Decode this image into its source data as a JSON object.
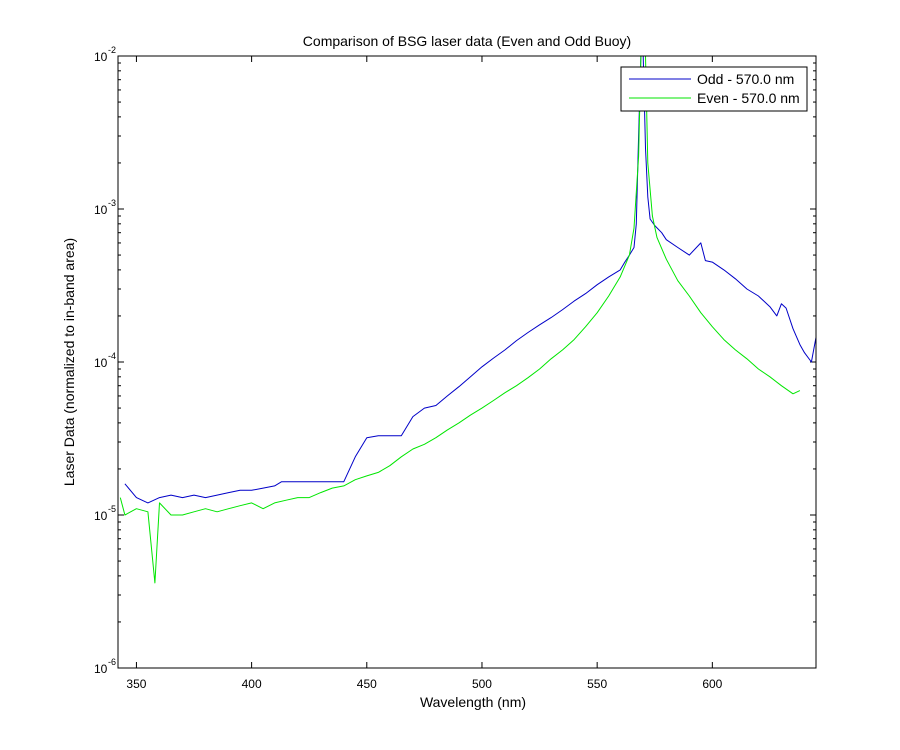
{
  "chart_data": {
    "type": "line",
    "title": "Comparison of BSG laser data (Even and Odd Buoy)",
    "xlabel": "Wavelength (nm)",
    "ylabel": "Laser Data (normalized to in-band area)",
    "xlim": [
      342,
      645
    ],
    "ylim": [
      1e-06,
      0.01
    ],
    "yscale": "log",
    "xticks": [
      350,
      400,
      450,
      500,
      550,
      600
    ],
    "yticks": [
      {
        "value": 1e-06,
        "base": "10",
        "exp": "-6"
      },
      {
        "value": 1e-05,
        "base": "10",
        "exp": "-5"
      },
      {
        "value": 0.0001,
        "base": "10",
        "exp": "-4"
      },
      {
        "value": 0.001,
        "base": "10",
        "exp": "-3"
      },
      {
        "value": 0.01,
        "base": "10",
        "exp": "-2"
      }
    ],
    "grid": false,
    "legend_position": "top-right",
    "series": [
      {
        "name": "Odd - 570.0 nm",
        "color": "#0000c8",
        "x": [
          345,
          350,
          355,
          360,
          365,
          370,
          375,
          380,
          385,
          390,
          395,
          400,
          405,
          410,
          413,
          420,
          430,
          440,
          445,
          450,
          455,
          460,
          465,
          470,
          475,
          480,
          485,
          490,
          495,
          500,
          505,
          510,
          515,
          520,
          525,
          530,
          535,
          540,
          545,
          550,
          555,
          560,
          562,
          564,
          566,
          567,
          568,
          569,
          570,
          571,
          572,
          573,
          575,
          578,
          580,
          585,
          590,
          595,
          597,
          600,
          605,
          610,
          615,
          620,
          625,
          628,
          630,
          632,
          635,
          638,
          640,
          643,
          645
        ],
        "y": [
          1.6e-05,
          1.3e-05,
          1.2e-05,
          1.3e-05,
          1.35e-05,
          1.3e-05,
          1.35e-05,
          1.3e-05,
          1.35e-05,
          1.4e-05,
          1.45e-05,
          1.45e-05,
          1.5e-05,
          1.55e-05,
          1.65e-05,
          1.65e-05,
          1.65e-05,
          1.65e-05,
          2.4e-05,
          3.2e-05,
          3.3e-05,
          3.3e-05,
          3.3e-05,
          4.4e-05,
          5e-05,
          5.2e-05,
          6e-05,
          6.9e-05,
          8e-05,
          9.3e-05,
          0.000106,
          0.00012,
          0.000138,
          0.000156,
          0.000175,
          0.000195,
          0.00022,
          0.00025,
          0.00028,
          0.00032,
          0.00036,
          0.0004,
          0.00045,
          0.0005,
          0.00056,
          0.0008,
          0.003,
          0.01,
          0.01,
          0.0025,
          0.0012,
          0.00086,
          0.00078,
          0.0007,
          0.00063,
          0.00056,
          0.0005,
          0.0006,
          0.00046,
          0.00045,
          0.0004,
          0.00035,
          0.0003,
          0.00027,
          0.00023,
          0.0002,
          0.00024,
          0.000225,
          0.000165,
          0.00013,
          0.000115,
          0.0001,
          0.000145
        ]
      },
      {
        "name": "Even - 570.0 nm",
        "color": "#00e600",
        "x": [
          343,
          345,
          350,
          355,
          358,
          360,
          365,
          370,
          375,
          380,
          385,
          390,
          395,
          400,
          405,
          410,
          415,
          420,
          425,
          430,
          435,
          440,
          445,
          450,
          455,
          460,
          465,
          470,
          475,
          480,
          485,
          490,
          495,
          500,
          505,
          510,
          515,
          520,
          525,
          530,
          535,
          540,
          545,
          550,
          555,
          560,
          564,
          566,
          568,
          569,
          570,
          571,
          572,
          574,
          576,
          580,
          585,
          590,
          595,
          600,
          605,
          610,
          615,
          620,
          625,
          630,
          635,
          638
        ],
        "y": [
          1.3e-05,
          1e-05,
          1.1e-05,
          1.05e-05,
          3.6e-06,
          1.2e-05,
          1e-05,
          1e-05,
          1.05e-05,
          1.1e-05,
          1.05e-05,
          1.1e-05,
          1.15e-05,
          1.2e-05,
          1.1e-05,
          1.2e-05,
          1.25e-05,
          1.3e-05,
          1.3e-05,
          1.4e-05,
          1.5e-05,
          1.55e-05,
          1.7e-05,
          1.8e-05,
          1.9e-05,
          2.1e-05,
          2.4e-05,
          2.7e-05,
          2.9e-05,
          3.2e-05,
          3.6e-05,
          4e-05,
          4.5e-05,
          5e-05,
          5.6e-05,
          6.3e-05,
          7e-05,
          7.9e-05,
          9e-05,
          0.000105,
          0.00012,
          0.00014,
          0.00017,
          0.00021,
          0.00027,
          0.00036,
          0.0005,
          0.00075,
          0.0022,
          0.01,
          0.01,
          0.01,
          0.002,
          0.0009,
          0.00065,
          0.00047,
          0.00034,
          0.00027,
          0.00021,
          0.00017,
          0.00014,
          0.00012,
          0.000105,
          9e-05,
          8e-05,
          7e-05,
          6.2e-05,
          6.5e-05
        ]
      }
    ]
  }
}
